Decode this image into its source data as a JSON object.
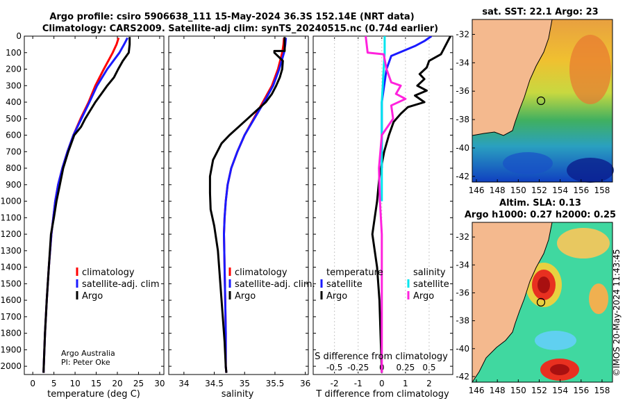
{
  "titles": {
    "line1": "Argo profile: csiro 5906638_111 15-May-2024 36.3S 152.14E (NRT data)",
    "line2": "Climatology: CARS2009. Satellite-adj clim: synTS_20240515.nc (0.74d earlier)"
  },
  "map_titles": {
    "sst": "sat. SST: 22.1 Argo: 23",
    "sla1": "Altim. SLA: 0.13",
    "sla2": "Argo h1000: 0.27 h2000: 0.25"
  },
  "credits": {
    "line1": "Argo Australia",
    "line2": "PI: Peter Oke"
  },
  "copyright": "©IMOS 20-May-2024 11:43:45",
  "legends": {
    "temp": [
      "climatology",
      "satellite-adj. clim",
      "Argo"
    ],
    "sal": [
      "climatology",
      "satellite-adj. clim.",
      "Argo"
    ],
    "diff_hdr_t": "temperature",
    "diff_hdr_s": "salinity",
    "diff_t": [
      "satellite",
      "Argo"
    ],
    "diff_s": [
      "satellite",
      "Argo"
    ]
  },
  "colors": {
    "clim": "#ff0000",
    "sat": "#1a1aff",
    "argo": "#000000",
    "s_sat": "#00e5ee",
    "s_argo": "#ff22dd",
    "land": "#f4b98e"
  },
  "chart_data": [
    {
      "type": "line",
      "title": "",
      "xlabel": "temperature (deg C)",
      "ylabel": "",
      "xlim": [
        -2,
        31
      ],
      "ylim": [
        2050,
        0
      ],
      "xticks": [
        "0",
        "5",
        "10",
        "15",
        "20",
        "25",
        "30"
      ],
      "yticks": [
        "0",
        "100",
        "200",
        "300",
        "400",
        "500",
        "600",
        "700",
        "800",
        "900",
        "1000",
        "1100",
        "1200",
        "1300",
        "1400",
        "1500",
        "1600",
        "1700",
        "1800",
        "1900",
        "2000"
      ],
      "series": [
        {
          "name": "climatology",
          "x": [
            20.3,
            19.8,
            18.9,
            16.8,
            14.8,
            13.2,
            11.3,
            9.6,
            8.2,
            7.0,
            6.0,
            5.3,
            4.4,
            3.8,
            3.3,
            2.9,
            2.6,
            2.55
          ],
          "y": [
            10,
            50,
            100,
            200,
            300,
            400,
            500,
            600,
            700,
            800,
            900,
            1000,
            1200,
            1400,
            1600,
            1800,
            2000,
            2040
          ]
        },
        {
          "name": "satellite-adj. clim",
          "x": [
            22.4,
            21.6,
            20.5,
            17.6,
            15.2,
            13.4,
            11.5,
            9.6,
            8.2,
            7.0,
            6.0,
            5.3,
            4.4,
            3.8,
            3.3,
            2.9,
            2.6,
            2.55
          ],
          "y": [
            10,
            50,
            100,
            200,
            300,
            400,
            500,
            600,
            700,
            800,
            900,
            1000,
            1200,
            1400,
            1600,
            1800,
            2000,
            2040
          ]
        },
        {
          "name": "Argo",
          "x": [
            22.9,
            22.9,
            22.7,
            21.3,
            20.2,
            19.2,
            17.6,
            16.2,
            14.8,
            13.6,
            12.4,
            11.4,
            9.8,
            8.4,
            7.2,
            6.4,
            5.6,
            5.0,
            4.3,
            3.8,
            3.3,
            2.9,
            2.6,
            2.55
          ],
          "y": [
            5,
            50,
            100,
            150,
            200,
            250,
            300,
            350,
            400,
            450,
            500,
            550,
            600,
            700,
            800,
            900,
            1000,
            1100,
            1200,
            1400,
            1600,
            1800,
            2000,
            2040
          ]
        }
      ]
    },
    {
      "type": "line",
      "title": "",
      "xlabel": "salinity",
      "ylabel": "",
      "xlim": [
        33.75,
        36.05
      ],
      "ylim": [
        2050,
        0
      ],
      "xticks": [
        "34",
        "34.5",
        "35",
        "35.5",
        "36"
      ],
      "series": [
        {
          "name": "climatology",
          "x": [
            35.65,
            35.64,
            35.62,
            35.55,
            35.45,
            35.3,
            35.15,
            35.0,
            34.88,
            34.78,
            34.72,
            34.69,
            34.67,
            34.66,
            34.67,
            34.68,
            34.69,
            34.69,
            34.7
          ],
          "y": [
            10,
            50,
            100,
            200,
            300,
            400,
            500,
            600,
            700,
            800,
            900,
            1000,
            1100,
            1200,
            1400,
            1600,
            1800,
            2000,
            2040
          ]
        },
        {
          "name": "satellite-adj. clim.",
          "x": [
            35.68,
            35.67,
            35.65,
            35.57,
            35.47,
            35.32,
            35.16,
            35.0,
            34.88,
            34.78,
            34.72,
            34.69,
            34.67,
            34.66,
            34.67,
            34.68,
            34.69,
            34.69,
            34.7
          ],
          "y": [
            10,
            50,
            100,
            200,
            300,
            400,
            500,
            600,
            700,
            800,
            900,
            1000,
            1100,
            1200,
            1400,
            1600,
            1800,
            2000,
            2040
          ]
        },
        {
          "name": "Argo",
          "x": [
            35.66,
            35.66,
            35.49,
            35.49,
            35.63,
            35.62,
            35.58,
            35.52,
            35.45,
            35.35,
            35.2,
            35.05,
            34.9,
            34.75,
            34.62,
            34.48,
            34.43,
            34.43,
            34.44,
            34.5,
            34.56,
            34.6,
            34.64,
            34.67,
            34.69,
            34.7
          ],
          "y": [
            5,
            90,
            90,
            100,
            150,
            200,
            250,
            300,
            350,
            400,
            450,
            500,
            550,
            600,
            650,
            750,
            850,
            950,
            1050,
            1150,
            1300,
            1500,
            1700,
            1850,
            2000,
            2040
          ]
        }
      ]
    },
    {
      "type": "line",
      "title": "",
      "xlabel": "T difference from climatology",
      "xlabel2": "S difference from climatology",
      "ylabel": "",
      "xlim": [
        -2.9,
        3.0
      ],
      "ylim": [
        2050,
        0
      ],
      "xticks": [
        "-2",
        "-1",
        "0",
        "1",
        "2"
      ],
      "xticks2": [
        "-0.5",
        "-0.25",
        "0",
        "0.25",
        "0.5"
      ],
      "series": [
        {
          "name": "temperature satellite",
          "x": [
            2.1,
            1.8,
            1.4,
            0.9,
            0.4,
            0.2,
            0.1,
            0.0,
            0.0,
            0.0,
            0.0,
            0.0
          ],
          "y": [
            0,
            30,
            60,
            90,
            120,
            200,
            300,
            400,
            500,
            600,
            700,
            800
          ]
        },
        {
          "name": "temperature Argo",
          "x": [
            2.9,
            2.5,
            2.0,
            1.9,
            1.6,
            1.8,
            1.5,
            1.9,
            1.4,
            1.8,
            1.1,
            0.8,
            0.5,
            0.3,
            0.1,
            -0.1,
            -0.2,
            -0.3,
            -0.4,
            -0.2,
            -0.1,
            0.0
          ],
          "y": [
            0,
            110,
            150,
            190,
            230,
            260,
            300,
            330,
            360,
            400,
            430,
            470,
            520,
            600,
            700,
            850,
            1000,
            1100,
            1200,
            1400,
            1600,
            2040
          ]
        },
        {
          "name": "salinity satellite",
          "x": [
            0.03,
            0.03,
            0.02,
            0.01,
            0.0,
            0.0,
            0.0,
            0.0
          ],
          "y": [
            0,
            100,
            200,
            300,
            400,
            600,
            800,
            1000
          ]
        },
        {
          "name": "salinity Argo",
          "x": [
            -0.17,
            -0.15,
            0.02,
            0.05,
            0.1,
            0.2,
            0.15,
            0.25,
            0.1,
            0.12,
            0.0,
            -0.03,
            -0.02,
            0.0,
            0.0
          ],
          "y": [
            0,
            100,
            110,
            200,
            280,
            300,
            350,
            380,
            420,
            500,
            600,
            800,
            1000,
            1200,
            2040
          ]
        }
      ]
    }
  ]
}
